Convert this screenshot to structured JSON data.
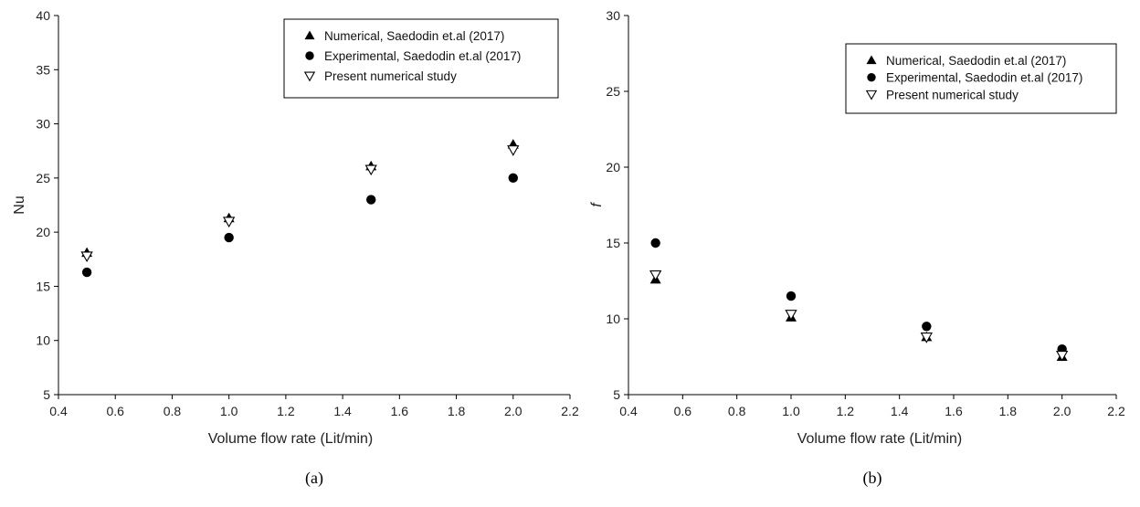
{
  "chart_data": [
    {
      "type": "scatter",
      "panel_label": "(a)",
      "xlabel": "Volume flow rate (Lit/min)",
      "ylabel": "Nu",
      "ylabel_italic": false,
      "xlim": [
        0.4,
        2.2
      ],
      "ylim": [
        5,
        40
      ],
      "xticks": [
        "0.4",
        "0.6",
        "0.8",
        "1.0",
        "1.2",
        "1.4",
        "1.6",
        "1.8",
        "2.0",
        "2.2"
      ],
      "yticks": [
        "5",
        "10",
        "15",
        "20",
        "25",
        "30",
        "35",
        "40"
      ],
      "grid": false,
      "legend_position": "top-right",
      "series": [
        {
          "name": "Numerical, Saedodin et.al (2017)",
          "marker": "triangle-up-filled",
          "x": [
            0.5,
            1.0,
            1.5,
            2.0
          ],
          "y": [
            18.1,
            21.3,
            26.1,
            28.1
          ]
        },
        {
          "name": "Experimental, Saedodin et.al (2017)",
          "marker": "circle-filled",
          "x": [
            0.5,
            1.0,
            1.5,
            2.0
          ],
          "y": [
            16.3,
            19.5,
            23.0,
            25.0
          ]
        },
        {
          "name": "Present numerical study",
          "marker": "triangle-down-open",
          "x": [
            0.5,
            1.0,
            1.5,
            2.0
          ],
          "y": [
            17.8,
            21.0,
            25.8,
            27.6
          ]
        }
      ]
    },
    {
      "type": "scatter",
      "panel_label": "(b)",
      "xlabel": "Volume flow rate (Lit/min)",
      "ylabel": "f",
      "ylabel_italic": true,
      "xlim": [
        0.4,
        2.2
      ],
      "ylim": [
        5,
        30
      ],
      "xticks": [
        "0.4",
        "0.6",
        "0.8",
        "1.0",
        "1.2",
        "1.4",
        "1.6",
        "1.8",
        "2.0",
        "2.2"
      ],
      "yticks": [
        "5",
        "10",
        "15",
        "20",
        "25",
        "30"
      ],
      "grid": false,
      "legend_position": "top-right",
      "series": [
        {
          "name": "Numerical, Saedodin et.al (2017)",
          "marker": "triangle-up-filled",
          "x": [
            0.5,
            1.0,
            1.5,
            2.0
          ],
          "y": [
            12.6,
            10.1,
            8.8,
            7.5
          ]
        },
        {
          "name": "Experimental, Saedodin et.al (2017)",
          "marker": "circle-filled",
          "x": [
            0.5,
            1.0,
            1.5,
            2.0
          ],
          "y": [
            15.0,
            11.5,
            9.5,
            8.0
          ]
        },
        {
          "name": "Present numerical study",
          "marker": "triangle-down-open",
          "x": [
            0.5,
            1.0,
            1.5,
            2.0
          ],
          "y": [
            12.9,
            10.3,
            8.8,
            7.6
          ]
        }
      ]
    }
  ]
}
